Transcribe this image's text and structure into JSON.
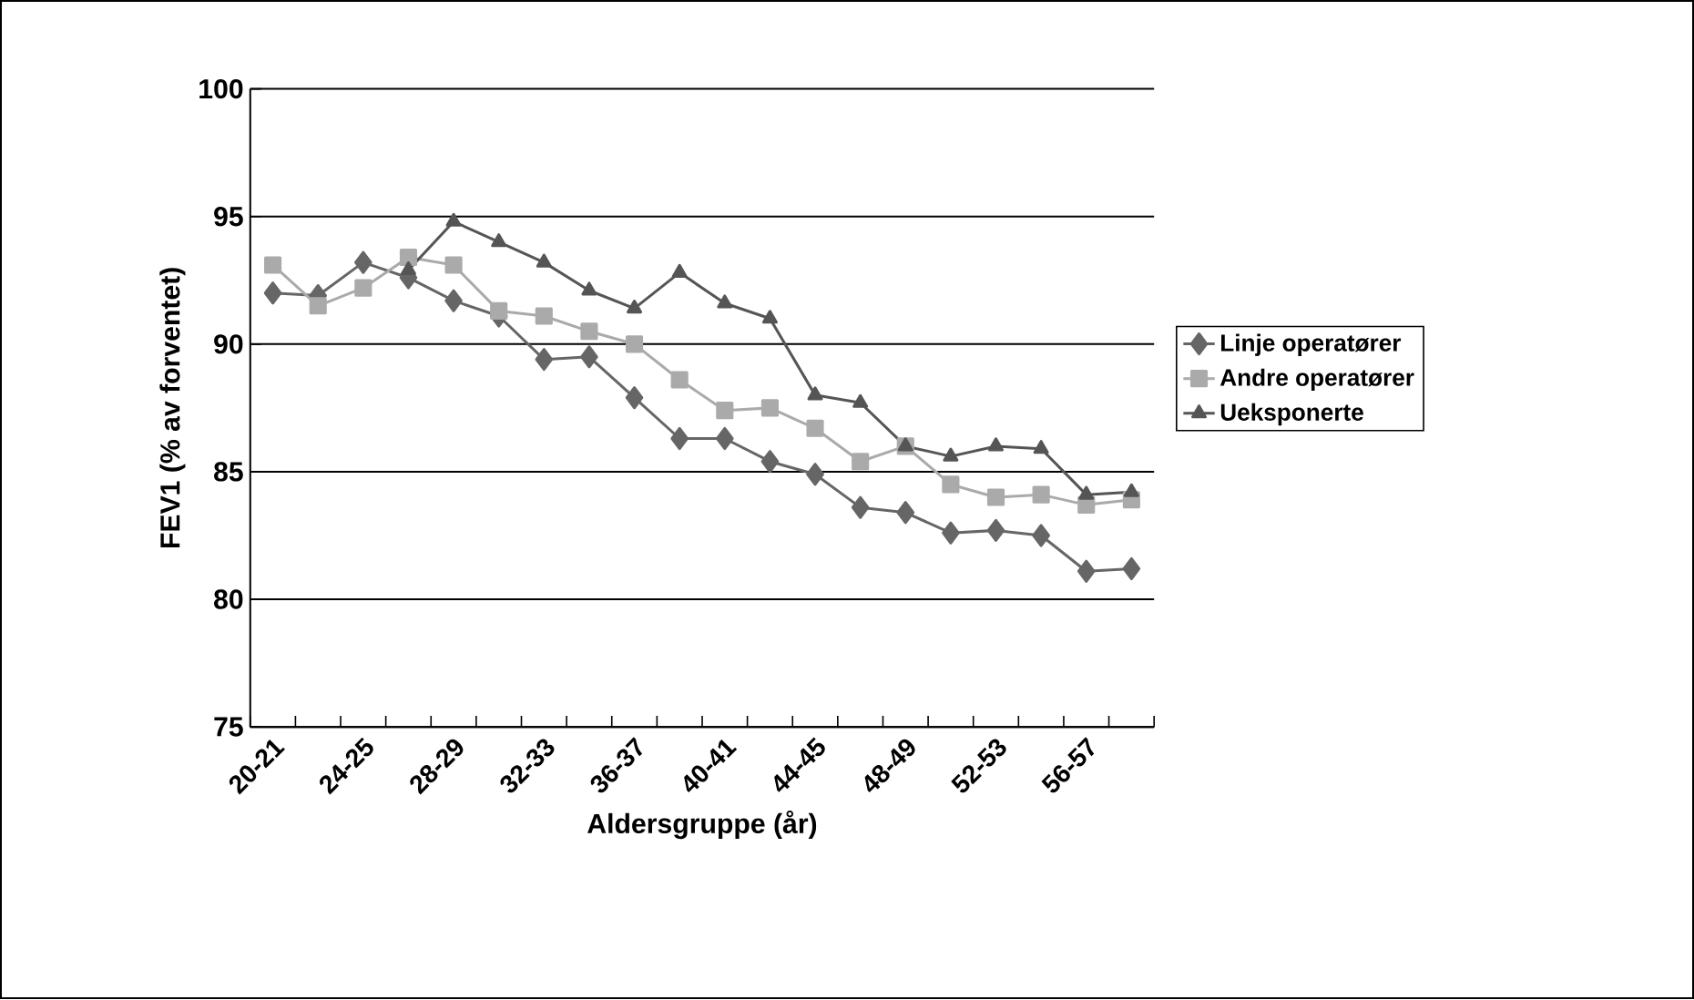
{
  "chart_data": {
    "type": "line",
    "xlabel": "Aldersgruppe (år)",
    "ylabel": "FEV1 (% av forventet)",
    "categories": [
      "20-21",
      null,
      "24-25",
      null,
      "28-29",
      null,
      "32-33",
      null,
      "36-37",
      null,
      "40-41",
      null,
      "44-45",
      null,
      "48-49",
      null,
      "52-53",
      null,
      "56-57",
      null
    ],
    "series": [
      {
        "name": "Linje operatører",
        "color": "#666666",
        "marker": "diamond",
        "values": [
          92.0,
          91.9,
          93.2,
          92.6,
          91.7,
          91.1,
          89.4,
          89.5,
          87.9,
          86.3,
          86.3,
          85.4,
          84.9,
          83.6,
          83.4,
          82.6,
          82.7,
          82.5,
          81.1,
          81.2
        ]
      },
      {
        "name": "Andre operatører",
        "color": "#aaaaaa",
        "marker": "square",
        "values": [
          93.1,
          91.5,
          92.2,
          93.4,
          93.1,
          91.3,
          91.1,
          90.5,
          90.0,
          88.6,
          87.4,
          87.5,
          86.7,
          85.4,
          86.0,
          84.5,
          84.0,
          84.1,
          83.7,
          83.9
        ]
      },
      {
        "name": "Ueksponerte",
        "color": "#555555",
        "marker": "triangle",
        "values": [
          null,
          null,
          null,
          92.9,
          94.8,
          94.0,
          93.2,
          92.1,
          91.4,
          92.8,
          91.6,
          91.0,
          88.0,
          87.7,
          86.0,
          85.6,
          86.0,
          85.9,
          84.1,
          84.2
        ]
      }
    ],
    "ylim": [
      75,
      100
    ],
    "yticks": [
      75,
      80,
      85,
      90,
      95,
      100
    ],
    "grid": "y",
    "legend": "right"
  }
}
